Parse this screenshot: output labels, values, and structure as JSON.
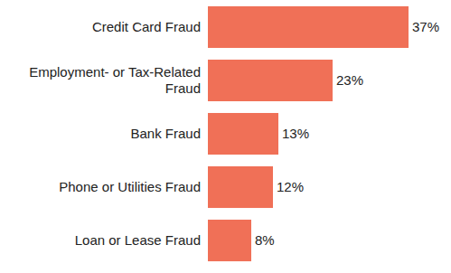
{
  "chart_data": {
    "type": "bar",
    "orientation": "horizontal",
    "categories": [
      "Credit Card Fraud",
      "Employment- or Tax-Related Fraud",
      "Bank Fraud",
      "Phone or Utilities Fraud",
      "Loan or Lease Fraud"
    ],
    "values": [
      37,
      23,
      13,
      12,
      8
    ],
    "value_labels": [
      "37%",
      "23%",
      "13%",
      "12%",
      "8%"
    ],
    "color": "#f07057",
    "data_labels": true,
    "tick_labels": false,
    "grid": false
  }
}
